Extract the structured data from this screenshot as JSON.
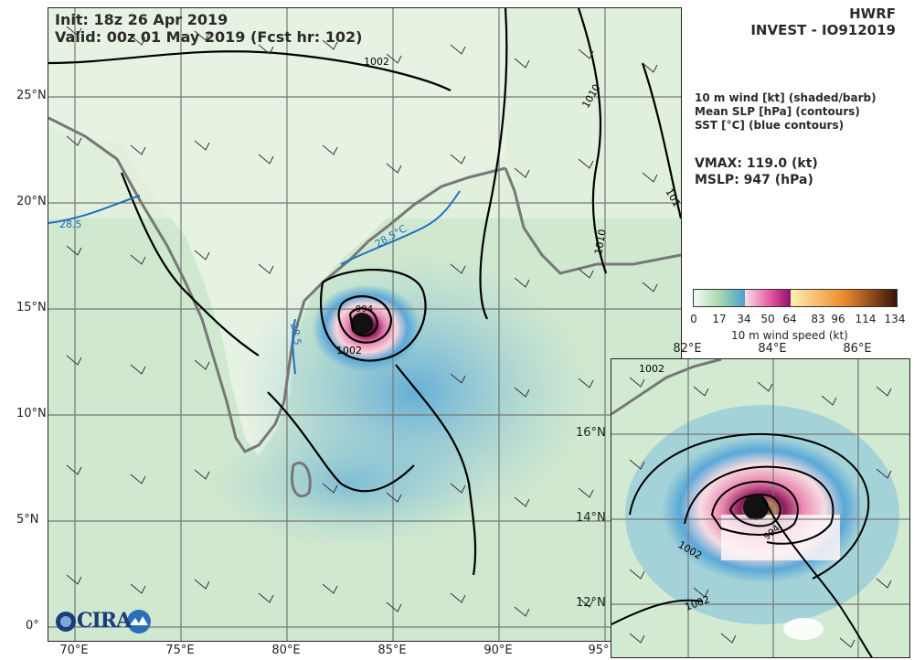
{
  "title": {
    "init": "Init:  18z 26 Apr 2019",
    "valid": "Valid: 00z 01 May 2019 (Fcst hr: 102)"
  },
  "header": {
    "model": "HWRF",
    "storm": "INVEST - IO912019"
  },
  "fields": [
    "10 m wind [kt] (shaded/barb)",
    "Mean SLP [hPa] (contours)",
    "SST [°C] (blue contours)"
  ],
  "stats": {
    "vmax": "VMAX: 119.0 (kt)",
    "mslp": "MSLP:  947 (hPa)"
  },
  "colorbar": {
    "title": "10 m wind speed (kt)",
    "ticks": [
      "0",
      "17",
      "34",
      "50",
      "64",
      "83",
      "96",
      "114",
      "134"
    ]
  },
  "main_map": {
    "lat_labels": [
      "25°N",
      "20°N",
      "15°N",
      "10°N",
      "5°N",
      "0°"
    ],
    "lon_labels": [
      "70°E",
      "75°E",
      "80°E",
      "85°E",
      "90°E",
      "95°"
    ],
    "contour_labels": [
      "1002",
      "1002",
      "1010",
      "1010",
      "101",
      "994"
    ],
    "sst_labels": [
      "28.5",
      "28.5",
      "28.5°C"
    ]
  },
  "inset_map": {
    "lat_labels": [
      "16°N",
      "14°N",
      "12°N"
    ],
    "lon_labels": [
      "82°E",
      "84°E",
      "86°E"
    ],
    "contour_labels": [
      "1002",
      "1002",
      "994",
      "1002"
    ]
  },
  "logo": {
    "text": "CIRA"
  },
  "colors": {
    "land": "#d8ecd4",
    "ocean": "#b8dcc8",
    "wind_moderate": "#5aa8d8",
    "wind_strong": "#f4b4c8",
    "core": "#8c1a5a",
    "sst_contour": "#1f6fbf"
  }
}
